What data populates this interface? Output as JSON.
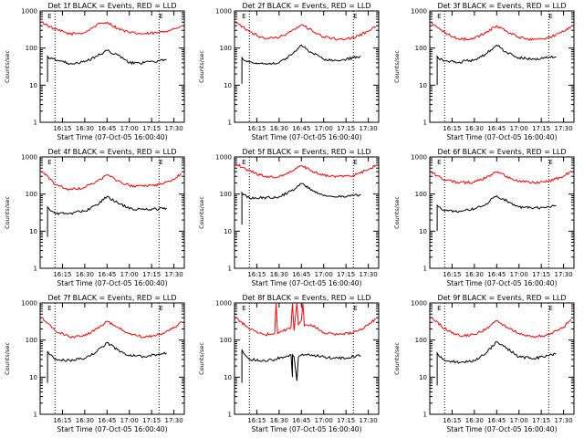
{
  "colors": {
    "background": "#ffffff",
    "events": "#000000",
    "lld": "#ff0000"
  },
  "chart_data": [
    {
      "type": "line",
      "title": "Det 1f BLACK = Events, RED = LLD",
      "xlabel": "Start Time (07-Oct-05 16:00:40)",
      "ylabel": "Counts/sec",
      "x_ticks": [
        "16:15",
        "16:30",
        "16:45",
        "17:00",
        "17:15",
        "17:30"
      ],
      "y_ticks": [
        "1",
        "10",
        "100",
        "1000"
      ],
      "ylim": [
        1,
        1000
      ],
      "y_scale": "log",
      "grid": false,
      "markers": [
        {
          "label": "E",
          "x": "16:05"
        },
        {
          "label": "E",
          "x": "17:20"
        }
      ],
      "vlines": [
        "16:10",
        "17:20"
      ],
      "series": [
        {
          "name": "LLD",
          "color": "#ff0000",
          "x": [
            "16:01",
            "16:10",
            "16:20",
            "16:30",
            "16:38",
            "16:45",
            "16:52",
            "17:00",
            "17:10",
            "17:20",
            "17:30",
            "17:35"
          ],
          "values": [
            500,
            320,
            240,
            260,
            420,
            500,
            340,
            260,
            240,
            260,
            330,
            380
          ]
        },
        {
          "name": "Events",
          "color": "#000000",
          "x": [
            "16:05",
            "16:05",
            "16:06",
            "16:10",
            "16:20",
            "16:30",
            "16:38",
            "16:45",
            "16:52",
            "17:00",
            "17:10",
            "17:20",
            "17:25"
          ],
          "values": [
            12,
            60,
            52,
            50,
            38,
            42,
            60,
            85,
            65,
            40,
            40,
            45,
            48
          ]
        }
      ]
    },
    {
      "type": "line",
      "title": "Det 2f BLACK = Events, RED = LLD",
      "xlabel": "Start Time (07-Oct-05 16:00:40)",
      "ylabel": "Counts/sec",
      "x_ticks": [
        "16:15",
        "16:30",
        "16:45",
        "17:00",
        "17:15",
        "17:30"
      ],
      "y_ticks": [
        "1",
        "10",
        "100",
        "1000"
      ],
      "ylim": [
        1,
        1000
      ],
      "y_scale": "log",
      "grid": false,
      "markers": [
        {
          "label": "E",
          "x": "16:05"
        },
        {
          "label": "E",
          "x": "17:20"
        }
      ],
      "vlines": [
        "16:10",
        "17:20"
      ],
      "series": [
        {
          "name": "LLD",
          "color": "#ff0000",
          "x": [
            "16:01",
            "16:10",
            "16:20",
            "16:30",
            "16:38",
            "16:45",
            "16:52",
            "17:00",
            "17:10",
            "17:20",
            "17:30",
            "17:35"
          ],
          "values": [
            480,
            280,
            180,
            190,
            280,
            420,
            300,
            200,
            170,
            190,
            280,
            380
          ]
        },
        {
          "name": "Events",
          "color": "#000000",
          "x": [
            "16:05",
            "16:05",
            "16:06",
            "16:10",
            "16:20",
            "16:30",
            "16:38",
            "16:45",
            "16:52",
            "17:00",
            "17:10",
            "17:20",
            "17:25"
          ],
          "values": [
            11,
            55,
            48,
            42,
            38,
            40,
            65,
            120,
            75,
            50,
            45,
            55,
            60
          ]
        }
      ]
    },
    {
      "type": "line",
      "title": "Det 3f BLACK = Events, RED = LLD",
      "xlabel": "Start Time (07-Oct-05 16:00:40)",
      "ylabel": "Counts/sec",
      "x_ticks": [
        "16:15",
        "16:30",
        "16:45",
        "17:00",
        "17:15",
        "17:30"
      ],
      "y_ticks": [
        "1",
        "10",
        "100",
        "1000"
      ],
      "ylim": [
        1,
        1000
      ],
      "y_scale": "log",
      "grid": false,
      "markers": [
        {
          "label": "E",
          "x": "16:05"
        },
        {
          "label": "E",
          "x": "17:20"
        }
      ],
      "vlines": [
        "16:10",
        "17:20"
      ],
      "series": [
        {
          "name": "LLD",
          "color": "#ff0000",
          "x": [
            "16:01",
            "16:10",
            "16:20",
            "16:30",
            "16:38",
            "16:45",
            "16:52",
            "17:00",
            "17:10",
            "17:20",
            "17:30",
            "17:35"
          ],
          "values": [
            480,
            260,
            170,
            180,
            260,
            400,
            280,
            190,
            170,
            190,
            280,
            380
          ]
        },
        {
          "name": "Events",
          "color": "#000000",
          "x": [
            "16:05",
            "16:05",
            "16:06",
            "16:10",
            "16:20",
            "16:30",
            "16:38",
            "16:45",
            "16:52",
            "17:00",
            "17:10",
            "17:20",
            "17:25"
          ],
          "values": [
            10,
            60,
            52,
            45,
            42,
            48,
            70,
            120,
            75,
            55,
            50,
            55,
            58
          ]
        }
      ]
    },
    {
      "type": "line",
      "title": "Det 4f BLACK = Events, RED = LLD",
      "xlabel": "Start Time (07-Oct-05 16:00:40)",
      "ylabel": "Counts/sec",
      "x_ticks": [
        "16:15",
        "16:30",
        "16:45",
        "17:00",
        "17:15",
        "17:30"
      ],
      "y_ticks": [
        "1",
        "10",
        "100",
        "1000"
      ],
      "ylim": [
        1,
        1000
      ],
      "y_scale": "log",
      "grid": false,
      "markers": [
        {
          "label": "E",
          "x": "16:05"
        },
        {
          "label": "E",
          "x": "17:20"
        }
      ],
      "vlines": [
        "16:10",
        "17:20"
      ],
      "series": [
        {
          "name": "LLD",
          "color": "#ff0000",
          "x": [
            "16:01",
            "16:10",
            "16:20",
            "16:30",
            "16:38",
            "16:45",
            "16:52",
            "17:00",
            "17:10",
            "17:20",
            "17:30",
            "17:35"
          ],
          "values": [
            420,
            180,
            130,
            150,
            220,
            330,
            230,
            170,
            160,
            180,
            250,
            360
          ]
        },
        {
          "name": "Events",
          "color": "#000000",
          "x": [
            "16:05",
            "16:05",
            "16:06",
            "16:10",
            "16:20",
            "16:30",
            "16:38",
            "16:45",
            "16:52",
            "17:00",
            "17:10",
            "17:20",
            "17:25"
          ],
          "values": [
            7,
            45,
            40,
            30,
            30,
            35,
            50,
            85,
            60,
            40,
            38,
            40,
            42
          ]
        }
      ]
    },
    {
      "type": "line",
      "title": "Det 5f BLACK = Events, RED = LLD",
      "xlabel": "Start Time (07-Oct-05 16:00:40)",
      "ylabel": "Counts/sec",
      "x_ticks": [
        "16:15",
        "16:30",
        "16:45",
        "17:00",
        "17:15",
        "17:30"
      ],
      "y_ticks": [
        "1",
        "10",
        "100",
        "1000"
      ],
      "ylim": [
        1,
        1000
      ],
      "y_scale": "log",
      "grid": false,
      "markers": [
        {
          "label": "E",
          "x": "16:05"
        },
        {
          "label": "E",
          "x": "17:20"
        }
      ],
      "vlines": [
        "16:10",
        "17:20"
      ],
      "series": [
        {
          "name": "LLD",
          "color": "#ff0000",
          "x": [
            "16:01",
            "16:10",
            "16:20",
            "16:30",
            "16:38",
            "16:45",
            "16:52",
            "17:00",
            "17:10",
            "17:20",
            "17:30",
            "17:35"
          ],
          "values": [
            650,
            420,
            300,
            290,
            400,
            580,
            420,
            320,
            300,
            320,
            450,
            600
          ]
        },
        {
          "name": "Events",
          "color": "#000000",
          "x": [
            "16:05",
            "16:05",
            "16:06",
            "16:10",
            "16:20",
            "16:30",
            "16:38",
            "16:45",
            "16:52",
            "17:00",
            "17:10",
            "17:20",
            "17:25"
          ],
          "values": [
            15,
            110,
            95,
            80,
            80,
            85,
            120,
            190,
            130,
            90,
            85,
            90,
            95
          ]
        }
      ]
    },
    {
      "type": "line",
      "title": "Det 6f BLACK = Events, RED = LLD",
      "xlabel": "Start Time (07-Oct-05 16:00:40)",
      "ylabel": "Counts/sec",
      "x_ticks": [
        "16:15",
        "16:30",
        "16:45",
        "17:00",
        "17:15",
        "17:30"
      ],
      "y_ticks": [
        "1",
        "10",
        "100",
        "1000"
      ],
      "ylim": [
        1,
        1000
      ],
      "y_scale": "log",
      "grid": false,
      "markers": [
        {
          "label": "E",
          "x": "16:05"
        },
        {
          "label": "E",
          "x": "17:20"
        }
      ],
      "vlines": [
        "16:10",
        "17:20"
      ],
      "series": [
        {
          "name": "LLD",
          "color": "#ff0000",
          "x": [
            "16:01",
            "16:10",
            "16:20",
            "16:30",
            "16:38",
            "16:45",
            "16:52",
            "17:00",
            "17:10",
            "17:20",
            "17:30",
            "17:35"
          ],
          "values": [
            400,
            240,
            200,
            210,
            280,
            400,
            300,
            220,
            200,
            220,
            300,
            420
          ]
        },
        {
          "name": "Events",
          "color": "#000000",
          "x": [
            "16:05",
            "16:05",
            "16:06",
            "16:10",
            "16:20",
            "16:30",
            "16:38",
            "16:45",
            "16:52",
            "17:00",
            "17:10",
            "17:20",
            "17:25"
          ],
          "values": [
            10,
            50,
            45,
            35,
            35,
            40,
            55,
            90,
            65,
            45,
            42,
            45,
            48
          ]
        }
      ]
    },
    {
      "type": "line",
      "title": "Det 7f BLACK = Events, RED = LLD",
      "xlabel": "Start Time (07-Oct-05 16:00:40)",
      "ylabel": "Counts/sec",
      "x_ticks": [
        "16:15",
        "16:30",
        "16:45",
        "17:00",
        "17:15",
        "17:30"
      ],
      "y_ticks": [
        "1",
        "10",
        "100",
        "1000"
      ],
      "ylim": [
        1,
        1000
      ],
      "y_scale": "log",
      "grid": false,
      "markers": [
        {
          "label": "E",
          "x": "16:05"
        },
        {
          "label": "E",
          "x": "17:20"
        }
      ],
      "vlines": [
        "16:10",
        "17:20"
      ],
      "series": [
        {
          "name": "LLD",
          "color": "#ff0000",
          "x": [
            "16:01",
            "16:10",
            "16:20",
            "16:30",
            "16:38",
            "16:45",
            "16:52",
            "17:00",
            "17:10",
            "17:20",
            "17:30",
            "17:35"
          ],
          "values": [
            400,
            180,
            120,
            130,
            200,
            320,
            220,
            150,
            120,
            140,
            210,
            320
          ]
        },
        {
          "name": "Events",
          "color": "#000000",
          "x": [
            "16:05",
            "16:05",
            "16:06",
            "16:10",
            "16:20",
            "16:30",
            "16:38",
            "16:45",
            "16:52",
            "17:00",
            "17:10",
            "17:20",
            "17:25"
          ],
          "values": [
            7,
            50,
            42,
            30,
            28,
            32,
            48,
            85,
            55,
            38,
            36,
            42,
            45
          ]
        }
      ]
    },
    {
      "type": "line",
      "title": "Det 8f BLACK = Events, RED = LLD",
      "xlabel": "Start Time (07-Oct-05 16:00:40)",
      "ylabel": "Counts/sec",
      "x_ticks": [
        "16:15",
        "16:30",
        "16:45",
        "17:00",
        "17:15",
        "17:30"
      ],
      "y_ticks": [
        "1",
        "10",
        "100",
        "1000"
      ],
      "ylim": [
        1,
        1000
      ],
      "y_scale": "log",
      "grid": false,
      "markers": [
        {
          "label": "E",
          "x": "16:05"
        },
        {
          "label": "E",
          "x": "17:20"
        }
      ],
      "vlines": [
        "16:10",
        "17:20"
      ],
      "series": [
        {
          "name": "LLD",
          "color": "#ff0000",
          "x": [
            "16:01",
            "16:10",
            "16:20",
            "16:27",
            "16:28",
            "16:29",
            "16:38",
            "16:39",
            "16:40",
            "16:42",
            "16:43",
            "16:45",
            "16:46",
            "16:47",
            "16:52",
            "17:00",
            "17:10",
            "17:20",
            "17:30",
            "17:35"
          ],
          "values": [
            400,
            200,
            140,
            150,
            1000,
            150,
            220,
            1000,
            180,
            1000,
            260,
            340,
            1000,
            240,
            250,
            160,
            140,
            160,
            250,
            380
          ]
        },
        {
          "name": "Events",
          "color": "#000000",
          "x": [
            "16:05",
            "16:05",
            "16:06",
            "16:10",
            "16:20",
            "16:27",
            "16:38",
            "16:39",
            "16:39",
            "16:40",
            "16:42",
            "16:43",
            "16:44",
            "16:52",
            "17:00",
            "17:10",
            "17:20",
            "17:25"
          ],
          "values": [
            7,
            55,
            45,
            30,
            28,
            30,
            40,
            10,
            40,
            35,
            8,
            35,
            38,
            40,
            35,
            32,
            36,
            38
          ]
        }
      ]
    },
    {
      "type": "line",
      "title": "Det 9f BLACK = Events, RED = LLD",
      "xlabel": "Start Time (07-Oct-05 16:00:40)",
      "ylabel": "Counts/sec",
      "x_ticks": [
        "16:15",
        "16:30",
        "16:45",
        "17:00",
        "17:15",
        "17:30"
      ],
      "y_ticks": [
        "1",
        "10",
        "100",
        "1000"
      ],
      "ylim": [
        1,
        1000
      ],
      "y_scale": "log",
      "grid": false,
      "markers": [
        {
          "label": "E",
          "x": "16:05"
        },
        {
          "label": "E",
          "x": "17:20"
        }
      ],
      "vlines": [
        "16:10",
        "17:20"
      ],
      "series": [
        {
          "name": "LLD",
          "color": "#ff0000",
          "x": [
            "16:01",
            "16:10",
            "16:20",
            "16:30",
            "16:38",
            "16:45",
            "16:52",
            "17:00",
            "17:10",
            "17:20",
            "17:30",
            "17:35"
          ],
          "values": [
            420,
            200,
            130,
            140,
            200,
            330,
            220,
            150,
            120,
            140,
            220,
            360
          ]
        },
        {
          "name": "Events",
          "color": "#000000",
          "x": [
            "16:05",
            "16:05",
            "16:06",
            "16:10",
            "16:20",
            "16:30",
            "16:38",
            "16:45",
            "16:52",
            "17:00",
            "17:10",
            "17:20",
            "17:25"
          ],
          "values": [
            6,
            45,
            38,
            28,
            25,
            28,
            45,
            90,
            60,
            35,
            32,
            38,
            42
          ]
        }
      ]
    }
  ]
}
